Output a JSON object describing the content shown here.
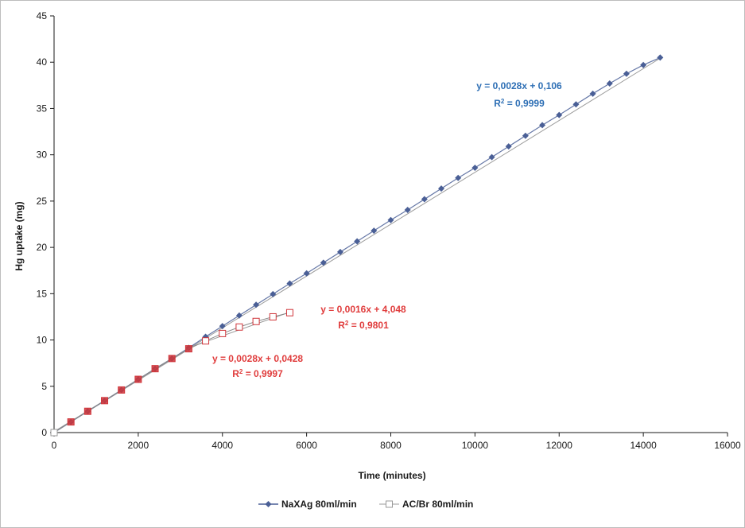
{
  "chart_data": {
    "type": "scatter",
    "title": "",
    "xlabel": "Time (minutes)",
    "ylabel": "Hg uptake (mg)",
    "xlim": [
      0,
      16000
    ],
    "ylim": [
      0,
      45
    ],
    "x_ticks": [
      0,
      2000,
      4000,
      6000,
      8000,
      10000,
      12000,
      14000,
      16000
    ],
    "y_ticks": [
      0,
      5,
      10,
      15,
      20,
      25,
      30,
      35,
      40,
      45
    ],
    "grid": false,
    "legend_position": "bottom",
    "series": [
      {
        "name": "NaXAg 80ml/min",
        "marker": "diamond",
        "color": "#4a5f96",
        "points": [
          [
            0,
            0
          ],
          [
            400,
            1.15
          ],
          [
            800,
            2.3
          ],
          [
            1200,
            3.45
          ],
          [
            1600,
            4.6
          ],
          [
            2000,
            5.75
          ],
          [
            2400,
            6.9
          ],
          [
            2800,
            8.0
          ],
          [
            3200,
            9.15
          ],
          [
            3600,
            10.35
          ],
          [
            4000,
            11.5
          ],
          [
            4400,
            12.65
          ],
          [
            4800,
            13.8
          ],
          [
            5200,
            14.95
          ],
          [
            5600,
            16.1
          ],
          [
            6000,
            17.2
          ],
          [
            6400,
            18.35
          ],
          [
            6800,
            19.5
          ],
          [
            7200,
            20.65
          ],
          [
            7600,
            21.8
          ],
          [
            8000,
            22.95
          ],
          [
            8400,
            24.05
          ],
          [
            8800,
            25.2
          ],
          [
            9200,
            26.35
          ],
          [
            9600,
            27.5
          ],
          [
            10000,
            28.6
          ],
          [
            10400,
            29.75
          ],
          [
            10800,
            30.9
          ],
          [
            11200,
            32.05
          ],
          [
            11600,
            33.2
          ],
          [
            12000,
            34.3
          ],
          [
            12400,
            35.45
          ],
          [
            12800,
            36.6
          ],
          [
            13200,
            37.7
          ],
          [
            13600,
            38.75
          ],
          [
            14000,
            39.7
          ],
          [
            14400,
            40.5
          ]
        ]
      },
      {
        "name": "AC/Br 80ml/min",
        "marker": "square-open",
        "color": "#d0353a",
        "points": [
          [
            0,
            0
          ],
          [
            400,
            1.15
          ],
          [
            800,
            2.3
          ],
          [
            1200,
            3.45
          ],
          [
            1600,
            4.6
          ],
          [
            2000,
            5.75
          ],
          [
            2400,
            6.9
          ],
          [
            2800,
            8.0
          ],
          [
            3200,
            9.05
          ],
          [
            3600,
            9.9
          ],
          [
            4000,
            10.7
          ],
          [
            4400,
            11.4
          ],
          [
            4800,
            12.0
          ],
          [
            5200,
            12.5
          ],
          [
            5600,
            12.95
          ]
        ]
      }
    ],
    "trendlines": [
      {
        "slope": 0.0028,
        "intercept": 0.106,
        "x_range": [
          0,
          14400
        ]
      },
      {
        "slope": 0.0028,
        "intercept": 0.0428,
        "x_range": [
          0,
          3200
        ]
      },
      {
        "slope": 0.0016,
        "intercept": 4.048,
        "x_range": [
          3200,
          5600
        ]
      }
    ],
    "annotations": [
      {
        "id": "naxag",
        "line1": "y = 0,0028x + 0,106",
        "r2_prefix": "R",
        "r2_sup": "2",
        "r2_value": " = 0,9999",
        "color": "#2e6fb5"
      },
      {
        "id": "acbr-late",
        "line1": "y = 0,0016x + 4,048",
        "r2_prefix": "R",
        "r2_sup": "2",
        "r2_value": " = 0,9801",
        "color": "#e03c3c"
      },
      {
        "id": "acbr-early",
        "line1": "y = 0,0028x + 0,0428",
        "r2_prefix": "R",
        "r2_sup": "2",
        "r2_value": " = 0,9997",
        "color": "#e03c3c"
      }
    ]
  }
}
